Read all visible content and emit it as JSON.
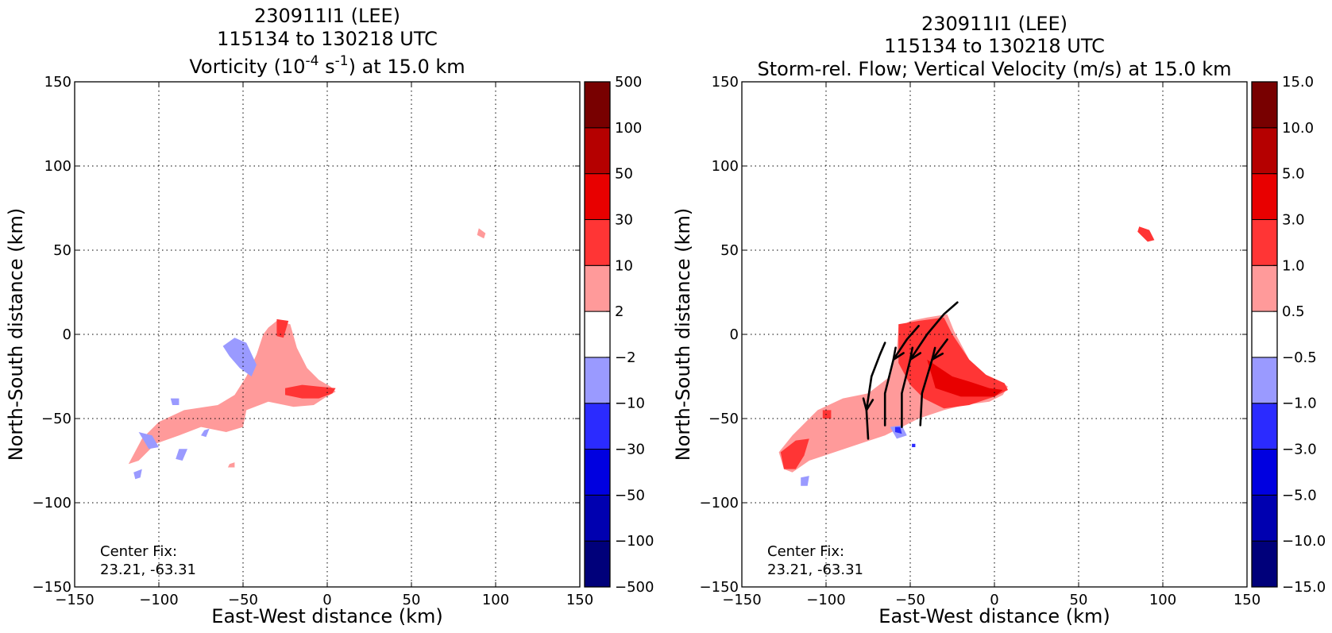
{
  "chart_data": [
    {
      "type": "heatmap",
      "title_lines": [
        "230911I1 (LEE)",
        "115134 to 130218 UTC"
      ],
      "title_field": {
        "prefix": "Vorticity (10",
        "exp1": "-4",
        "mid": " s",
        "exp2": "-1",
        "suffix": ") at 15.0 km"
      },
      "xlabel": "East-West distance (km)",
      "ylabel": "North-South distance (km)",
      "xlim": [
        -150,
        150
      ],
      "ylim": [
        -150,
        150
      ],
      "xticks": [
        -150,
        -100,
        -50,
        0,
        50,
        100,
        150
      ],
      "yticks": [
        -150,
        -100,
        -50,
        0,
        50,
        100,
        150
      ],
      "xtick_labels": [
        "−150",
        "−100",
        "−50",
        "0",
        "50",
        "100",
        "150"
      ],
      "ytick_labels": [
        "−150",
        "−100",
        "−50",
        "0",
        "50",
        "100",
        "150"
      ],
      "grid": true,
      "annotation": [
        "Center Fix:",
        "23.21, -63.31"
      ],
      "colorbar": {
        "bounds_labels": [
          "−500",
          "−100",
          "−50",
          "−30",
          "−10",
          "−2",
          "2",
          "10",
          "30",
          "50",
          "100",
          "500"
        ],
        "colors": [
          "#00007a",
          "#0000b0",
          "#0000e0",
          "#2b2bff",
          "#9a9aff",
          "#ffffff",
          "#ff9a9a",
          "#ff3535",
          "#e80000",
          "#b50000",
          "#780000"
        ]
      },
      "regions": [
        {
          "level": 1,
          "points": [
            [
              -118,
              -77
            ],
            [
              -110,
              -62
            ],
            [
              -100,
              -52
            ],
            [
              -85,
              -45
            ],
            [
              -65,
              -42
            ],
            [
              -55,
              -36
            ],
            [
              -48,
              -25
            ],
            [
              -42,
              -12
            ],
            [
              -38,
              0
            ],
            [
              -35,
              4
            ],
            [
              -30,
              8
            ],
            [
              -22,
              6
            ],
            [
              -18,
              -8
            ],
            [
              -12,
              -20
            ],
            [
              -5,
              -27
            ],
            [
              2,
              -31
            ],
            [
              5,
              -34
            ],
            [
              -2,
              -38
            ],
            [
              -8,
              -42
            ],
            [
              -20,
              -43
            ],
            [
              -35,
              -40
            ],
            [
              -48,
              -45
            ],
            [
              -50,
              -55
            ],
            [
              -60,
              -58
            ],
            [
              -75,
              -55
            ],
            [
              -88,
              -60
            ],
            [
              -102,
              -65
            ],
            [
              -112,
              -75
            ]
          ]
        },
        {
          "level": 1,
          "points": [
            [
              90,
              63
            ],
            [
              94,
              60
            ],
            [
              93,
              57
            ],
            [
              89,
              59
            ]
          ]
        },
        {
          "level": 1,
          "points": [
            [
              -58,
              -77
            ],
            [
              -55,
              -76
            ],
            [
              -55,
              -79
            ],
            [
              -59,
              -79
            ]
          ]
        },
        {
          "level": 2,
          "points": [
            [
              -30,
              9
            ],
            [
              -23,
              8
            ],
            [
              -26,
              -2
            ],
            [
              -30,
              -1
            ]
          ]
        },
        {
          "level": 2,
          "points": [
            [
              -25,
              -32
            ],
            [
              -15,
              -30
            ],
            [
              -5,
              -31
            ],
            [
              5,
              -32
            ],
            [
              3,
              -35
            ],
            [
              -5,
              -38
            ],
            [
              -15,
              -38
            ],
            [
              -25,
              -36
            ]
          ]
        },
        {
          "level": -1,
          "points": [
            [
              -62,
              -7
            ],
            [
              -55,
              -2
            ],
            [
              -48,
              -5
            ],
            [
              -42,
              -18
            ],
            [
              -45,
              -25
            ],
            [
              -52,
              -20
            ],
            [
              -58,
              -13
            ]
          ]
        },
        {
          "level": -1,
          "points": [
            [
              -112,
              -58
            ],
            [
              -104,
              -60
            ],
            [
              -100,
              -67
            ],
            [
              -106,
              -68
            ]
          ]
        },
        {
          "level": -1,
          "points": [
            [
              -93,
              -38
            ],
            [
              -88,
              -38
            ],
            [
              -88,
              -42
            ],
            [
              -92,
              -42
            ]
          ]
        },
        {
          "level": -1,
          "points": [
            [
              -88,
              -68
            ],
            [
              -83,
              -68
            ],
            [
              -86,
              -75
            ],
            [
              -90,
              -74
            ]
          ]
        },
        {
          "level": -1,
          "points": [
            [
              -73,
              -57
            ],
            [
              -70,
              -56
            ],
            [
              -72,
              -61
            ],
            [
              -75,
              -60
            ]
          ]
        },
        {
          "level": -1,
          "points": [
            [
              -115,
              -82
            ],
            [
              -110,
              -80
            ],
            [
              -111,
              -85
            ],
            [
              -114,
              -86
            ]
          ]
        }
      ]
    },
    {
      "type": "heatmap",
      "title_lines": [
        "230911I1 (LEE)",
        "115134 to 130218 UTC",
        "Storm-rel. Flow; Vertical Velocity (m/s) at 15.0 km"
      ],
      "xlabel": "East-West distance (km)",
      "ylabel": "North-South distance (km)",
      "xlim": [
        -150,
        150
      ],
      "ylim": [
        -150,
        150
      ],
      "xticks": [
        -150,
        -100,
        -50,
        0,
        50,
        100,
        150
      ],
      "yticks": [
        -150,
        -100,
        -50,
        0,
        50,
        100,
        150
      ],
      "xtick_labels": [
        "−150",
        "−100",
        "−50",
        "0",
        "50",
        "100",
        "150"
      ],
      "ytick_labels": [
        "−150",
        "−100",
        "−50",
        "0",
        "50",
        "100",
        "150"
      ],
      "grid": true,
      "annotation": [
        "Center Fix:",
        "23.21, -63.31"
      ],
      "colorbar": {
        "bounds_labels": [
          "−15.0",
          "−10.0",
          "−5.0",
          "−3.0",
          "−1.0",
          "−0.5",
          "0.5",
          "1.0",
          "3.0",
          "5.0",
          "10.0",
          "15.0"
        ],
        "colors": [
          "#00007a",
          "#0000b0",
          "#0000e0",
          "#2b2bff",
          "#9a9aff",
          "#ffffff",
          "#ff9a9a",
          "#ff3535",
          "#e80000",
          "#b50000",
          "#780000"
        ]
      },
      "regions": [
        {
          "level": 1,
          "points": [
            [
              -125,
              -80
            ],
            [
              -128,
              -70
            ],
            [
              -120,
              -60
            ],
            [
              -105,
              -45
            ],
            [
              -90,
              -38
            ],
            [
              -75,
              -35
            ],
            [
              -62,
              -25
            ],
            [
              -58,
              -10
            ],
            [
              -57,
              4
            ],
            [
              -50,
              8
            ],
            [
              -40,
              10
            ],
            [
              -28,
              12
            ],
            [
              -24,
              2
            ],
            [
              -15,
              -15
            ],
            [
              -5,
              -25
            ],
            [
              5,
              -29
            ],
            [
              8,
              -31
            ],
            [
              5,
              -36
            ],
            [
              -3,
              -40
            ],
            [
              -18,
              -42
            ],
            [
              -30,
              -45
            ],
            [
              -45,
              -50
            ],
            [
              -55,
              -55
            ],
            [
              -65,
              -60
            ],
            [
              -80,
              -65
            ],
            [
              -95,
              -70
            ],
            [
              -110,
              -75
            ],
            [
              -120,
              -82
            ]
          ]
        },
        {
          "level": 2,
          "points": [
            [
              -57,
              6
            ],
            [
              -45,
              8
            ],
            [
              -30,
              10
            ],
            [
              -25,
              0
            ],
            [
              -15,
              -15
            ],
            [
              -5,
              -24
            ],
            [
              6,
              -29
            ],
            [
              8,
              -33
            ],
            [
              0,
              -37
            ],
            [
              -15,
              -42
            ],
            [
              -30,
              -44
            ],
            [
              -42,
              -38
            ],
            [
              -50,
              -30
            ],
            [
              -57,
              -17
            ]
          ]
        },
        {
          "level": 2,
          "points": [
            [
              -125,
              -80
            ],
            [
              -127,
              -70
            ],
            [
              -118,
              -63
            ],
            [
              -110,
              -62
            ],
            [
              -113,
              -72
            ],
            [
              -118,
              -80
            ]
          ]
        },
        {
          "level": 2,
          "points": [
            [
              -102,
              -45
            ],
            [
              -97,
              -45
            ],
            [
              -97,
              -50
            ],
            [
              -102,
              -50
            ]
          ]
        },
        {
          "level": 2,
          "points": [
            [
              86,
              64
            ],
            [
              92,
              62
            ],
            [
              95,
              56
            ],
            [
              91,
              55
            ],
            [
              85,
              61
            ]
          ]
        },
        {
          "level": 3,
          "points": [
            [
              -40,
              -15
            ],
            [
              -25,
              -25
            ],
            [
              -15,
              -28
            ],
            [
              -3,
              -32
            ],
            [
              5,
              -33
            ],
            [
              0,
              -37
            ],
            [
              -20,
              -37
            ],
            [
              -35,
              -32
            ]
          ]
        },
        {
          "level": -1,
          "points": [
            [
              -62,
              -55
            ],
            [
              -55,
              -54
            ],
            [
              -52,
              -60
            ],
            [
              -58,
              -62
            ]
          ]
        },
        {
          "level": -1,
          "points": [
            [
              -115,
              -85
            ],
            [
              -110,
              -84
            ],
            [
              -111,
              -90
            ],
            [
              -115,
              -90
            ]
          ]
        },
        {
          "level": -2,
          "points": [
            [
              -59,
              -55
            ],
            [
              -56,
              -55
            ],
            [
              -55,
              -59
            ],
            [
              -59,
              -58
            ]
          ]
        },
        {
          "level": -2,
          "points": [
            [
              -49,
              -65
            ],
            [
              -47,
              -65
            ],
            [
              -47,
              -67
            ],
            [
              -49,
              -67
            ]
          ]
        }
      ],
      "flow_lines": [
        {
          "points": [
            [
              -75,
              -62
            ],
            [
              -76,
              -45
            ],
            [
              -73,
              -25
            ],
            [
              -68,
              -12
            ],
            [
              -65,
              -5
            ]
          ],
          "arrow_at": 1
        },
        {
          "points": [
            [
              -65,
              -54
            ],
            [
              -65,
              -35
            ],
            [
              -60,
              -15
            ],
            [
              -52,
              -3
            ],
            [
              -45,
              5
            ]
          ],
          "arrow_at": 2
        },
        {
          "points": [
            [
              -55,
              -55
            ],
            [
              -55,
              -35
            ],
            [
              -50,
              -15
            ],
            [
              -40,
              0
            ],
            [
              -30,
              12
            ],
            [
              -22,
              19
            ]
          ],
          "arrow_at": 2
        },
        {
          "points": [
            [
              -44,
              -54
            ],
            [
              -43,
              -35
            ],
            [
              -37,
              -15
            ],
            [
              -28,
              -3
            ]
          ],
          "arrow_at": 2
        }
      ]
    }
  ]
}
